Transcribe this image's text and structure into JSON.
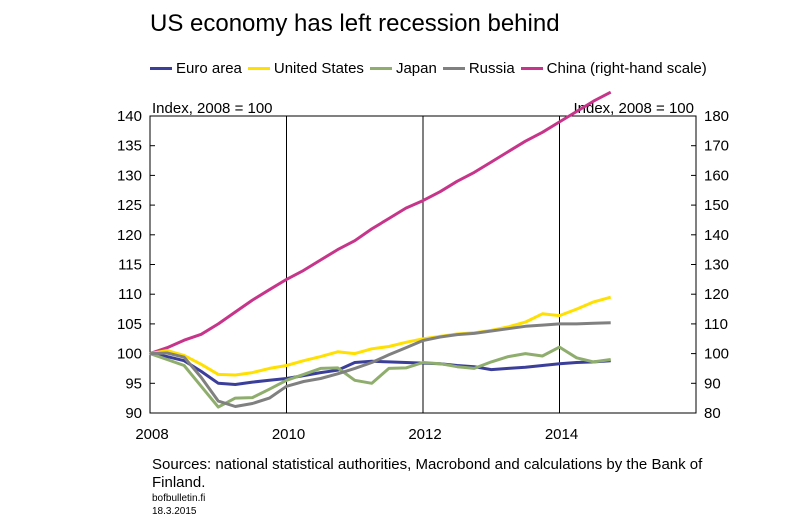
{
  "chart_data": {
    "type": "line",
    "title": "US economy has left recession behind",
    "left_axis_label": "Index, 2008 = 100",
    "right_axis_label": "Index, 2008 = 100",
    "ylim": [
      90,
      140
    ],
    "ylim_right": [
      80,
      180
    ],
    "yticks": [
      "140",
      "135",
      "130",
      "125",
      "120",
      "115",
      "110",
      "105",
      "100",
      "95",
      "90"
    ],
    "yticks_right": [
      "180",
      "170",
      "160",
      "150",
      "140",
      "130",
      "120",
      "110",
      "100",
      "90",
      "80"
    ],
    "xlim": [
      2008,
      2016
    ],
    "xticks": [
      "2008",
      "2010",
      "2012",
      "2014"
    ],
    "grid": "vertical",
    "legend_position": "top",
    "x": [
      2008.0,
      2008.25,
      2008.5,
      2008.75,
      2009.0,
      2009.25,
      2009.5,
      2009.75,
      2010.0,
      2010.25,
      2010.5,
      2010.75,
      2011.0,
      2011.25,
      2011.5,
      2011.75,
      2012.0,
      2012.25,
      2012.5,
      2012.75,
      2013.0,
      2013.25,
      2013.5,
      2013.75,
      2014.0,
      2014.25,
      2014.5,
      2014.75
    ],
    "series": [
      {
        "name": "Euro area",
        "color": "#3b3f99",
        "axis": "left",
        "values": [
          100,
          99.5,
          98.8,
          97.0,
          95.0,
          94.8,
          95.2,
          95.5,
          95.8,
          96.3,
          96.8,
          97.2,
          98.5,
          98.7,
          98.6,
          98.5,
          98.4,
          98.3,
          98.0,
          97.8,
          97.3,
          97.5,
          97.7,
          98.0,
          98.3,
          98.5,
          98.6,
          98.8
        ]
      },
      {
        "name": "United States",
        "color": "#ffe000",
        "axis": "left",
        "values": [
          100,
          100.5,
          99.7,
          98.2,
          96.5,
          96.4,
          96.8,
          97.5,
          98.0,
          98.8,
          99.5,
          100.3,
          100.0,
          100.8,
          101.2,
          101.9,
          102.5,
          102.9,
          103.3,
          103.5,
          103.9,
          104.5,
          105.3,
          106.7,
          106.4,
          107.5,
          108.7,
          109.5
        ]
      },
      {
        "name": "Japan",
        "color": "#8fae6d",
        "axis": "left",
        "values": [
          100,
          99.0,
          98.0,
          94.5,
          91.0,
          92.5,
          92.6,
          94.0,
          95.5,
          96.5,
          97.5,
          97.6,
          95.5,
          95.0,
          97.5,
          97.6,
          98.5,
          98.3,
          97.8,
          97.5,
          98.6,
          99.5,
          100.0,
          99.6,
          101.1,
          99.3,
          98.6,
          99.0
        ]
      },
      {
        "name": "Russia",
        "color": "#808080",
        "axis": "left",
        "values": [
          100,
          100.1,
          99.4,
          96.0,
          92.0,
          91.1,
          91.6,
          92.5,
          94.5,
          95.3,
          95.8,
          96.6,
          97.5,
          98.5,
          99.8,
          101.0,
          102.2,
          102.8,
          103.2,
          103.4,
          103.8,
          104.2,
          104.6,
          104.8,
          105.0,
          105.0,
          105.1,
          105.2
        ]
      },
      {
        "name": "China (right-hand scale)",
        "color": "#c7358a",
        "axis": "right",
        "values": [
          100,
          102.0,
          104.5,
          106.5,
          110.0,
          114.0,
          118.0,
          121.5,
          125.0,
          128.0,
          131.5,
          135.0,
          138.0,
          142.0,
          145.5,
          149.0,
          151.5,
          154.5,
          158.0,
          161.0,
          164.5,
          168.0,
          171.5,
          174.5,
          178.0,
          181.5,
          185.0,
          188.0
        ]
      }
    ]
  },
  "footer": {
    "sources": "Sources: national statistical authorities, Macrobond and calculations by the Bank of Finland.",
    "site": "bofbulletin.fi",
    "date": "18.3.2015"
  }
}
